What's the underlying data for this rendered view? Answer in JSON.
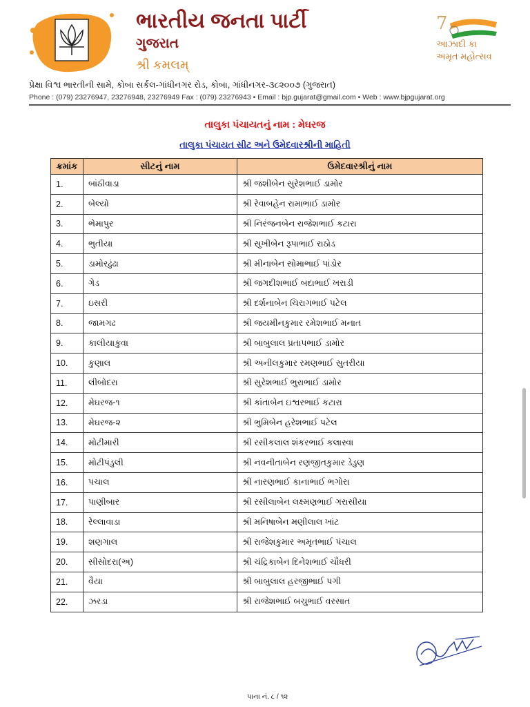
{
  "header": {
    "party_name": "ભારતીય જનતા પાર્ટી",
    "state": "ગુજરાત",
    "office": "શ્રી કમલમ્",
    "logo_text": "भाजपा",
    "amrit_logo_line1": "આઝાદી કા",
    "amrit_logo_line2": "અમૃત મહોત્સવ",
    "address": "પ્રેક્ષા વિશ્વ ભારતીની સામે, કોબા સર્કલ-ગાંધીનગર રોડ, કોબા, ગાંધીનગર-૩૮૨૦૦૭ (ગુજરાત)",
    "contact": "Phone : (079) 23276947, 23276948, 23276949  Fax : (079) 23276943   •  Email : bjp.gujarat@gmail.com • Web : www.bjpgujarat.org"
  },
  "taluka_title": "તાલુકા પંચાયતનું નામ : મેઘરજ",
  "sub_title": "તાલુકા પંચાયત સીટ અને ઉમેદવારશ્રીની માહિતી",
  "table": {
    "headers": [
      "ક્રમાંક",
      "સીટનું નામ",
      "ઉમેદવારશ્રીનું નામ"
    ],
    "rows": [
      [
        "1.",
        "બાંઠીવાડા",
        "શ્રી જશીબેન સુરેશભાઈ  ડામોર"
      ],
      [
        "2.",
        "બેલ્યો",
        "શ્રી રેવાબહેન રામાભાઈ ડામોર"
      ],
      [
        "3.",
        "ભેમાપુર",
        "શ્રી નિરંજનબેન રાજેશભાઈ  કટારા"
      ],
      [
        "4.",
        "ભુતીયા",
        "શ્રી સુખીબેન  રૂપાભાઈ  રાઠોડ"
      ],
      [
        "5.",
        "ડામોરઢુંઢા",
        "શ્રી મીનાબેન સોમાભાઈ પાંડોર"
      ],
      [
        "6.",
        "ગેડ",
        "શ્રી જગદીશભાઈ  બદાભાઈ ખરાડી"
      ],
      [
        "7.",
        "ઇસરી",
        "શ્રી દર્શનાબેન ચિરાગભાઈ  પટેલ"
      ],
      [
        "8.",
        "જામગઢ",
        "શ્રી જયમીનકુમાર રમેશભાઈ મનાત"
      ],
      [
        "9.",
        "કાલીયાકુવા",
        "શ્રી બાબુલાલ પ્રતાપભાઈ  ડામોર"
      ],
      [
        "10.",
        "કુણાલ",
        "શ્રી અનીલકુમાર રમણભાઈ  સુતરીયા"
      ],
      [
        "11.",
        "લીબોદરા",
        "શ્રી સુરેશભાઈ ભુરાભાઈ ડામોર"
      ],
      [
        "12.",
        "મેઘરજ-૧",
        "શ્રી કાંતાબેન ઇશ્વરભાઈ કટારા"
      ],
      [
        "13.",
        "મેઘરજ-૨",
        "શ્રી ભુમિબેન હરેશભાઈ  પટેલ"
      ],
      [
        "14.",
        "મોટીમારી",
        "શ્રી રસીકલાલ શંકરભાઈ કલાસ્વા"
      ],
      [
        "15.",
        "મોટીપંડુલી",
        "શ્રી નવનીતાબેન રણજીતકુમાર ડેડુણ"
      ],
      [
        "16.",
        "પચાલ",
        "શ્રી નારણભાઈ કાનાભાઈ ભગોરા"
      ],
      [
        "17.",
        "પાણીબાર",
        "શ્રી રસીલાબેન લક્ષ્મણભાઈ ગરાસીયા"
      ],
      [
        "18.",
        "રેલ્લાવાડા",
        "શ્રી મનિષાબેન મણીલાલ ખાંટ"
      ],
      [
        "19.",
        "શણગાલ",
        "શ્રી રાજેશકુમાર અમૃતભાઈ પંચાલ"
      ],
      [
        "20.",
        "સીસોદરા(અ)",
        "શ્રી ચંદ્રિકાબેન દિનેશભાઈ ચૌધરી"
      ],
      [
        "21.",
        "વૈયા",
        "શ્રી બાબુલાલ હરજીભાઈ  પગી"
      ],
      [
        "22.",
        "ઝરડા",
        "શ્રી રાજેશભાઈ બચુભાઈ વરસાત"
      ]
    ]
  },
  "signature_text": "જાડેજા/૨૧૨",
  "page_number": "પાના નં. ૮ / ૧૨",
  "colors": {
    "brand_orange": "#f39a2b",
    "title_red": "#dd1111",
    "link_blue": "#1a2fb0",
    "header_fill": "#f8cba0"
  }
}
